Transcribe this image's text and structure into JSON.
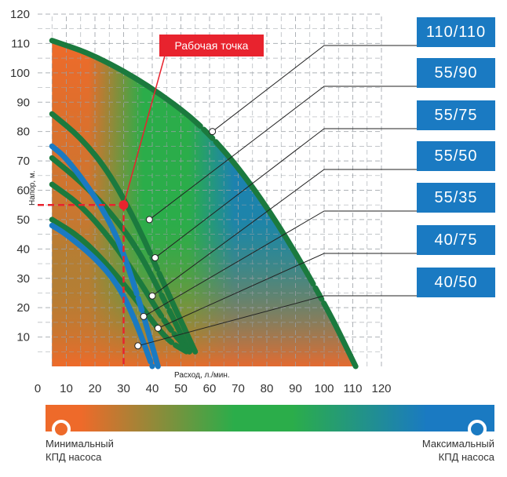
{
  "chart_data": {
    "type": "line",
    "x_ticks": [
      "0",
      "10",
      "20",
      "30",
      "40",
      "50",
      "60",
      "70",
      "80",
      "90",
      "100",
      "110",
      "120"
    ],
    "y_ticks": [
      "10",
      "20",
      "30",
      "40",
      "50",
      "60",
      "70",
      "80",
      "90",
      "100",
      "110",
      "120"
    ],
    "xlabel": "Расход, л./мин.",
    "ylabel": "Напор, м.",
    "xlim": [
      0,
      120
    ],
    "ylim": [
      0,
      120
    ],
    "grid": true,
    "series": [
      {
        "name": "110/110",
        "color": "#1b7a3e",
        "x": [
          5,
          20,
          40,
          60,
          80,
          100,
          111
        ],
        "y": [
          111,
          106,
          95,
          80,
          55,
          22,
          0
        ],
        "label_point": [
          61,
          80
        ]
      },
      {
        "name": "55/90",
        "color": "#1b7a3e",
        "x": [
          5,
          15,
          25,
          35,
          45,
          55
        ],
        "y": [
          86,
          78,
          66,
          48,
          26,
          5
        ],
        "label_point": [
          39,
          50
        ]
      },
      {
        "name": "55/75",
        "color": "#1b7a3e",
        "x": [
          5,
          15,
          25,
          35,
          45,
          53
        ],
        "y": [
          71,
          63,
          53,
          40,
          21,
          5
        ],
        "label_point": [
          41,
          37
        ]
      },
      {
        "name": "55/50",
        "color": "#1b7a3e",
        "x": [
          5,
          15,
          25,
          35,
          45,
          53
        ],
        "y": [
          62,
          55,
          44,
          30,
          14,
          5
        ],
        "label_point": [
          40,
          24
        ]
      },
      {
        "name": "55/35",
        "color": "#1b7a3e",
        "x": [
          5,
          15,
          25,
          35,
          45,
          52
        ],
        "y": [
          50,
          44,
          34,
          22,
          9,
          5
        ],
        "label_point": [
          37,
          17
        ]
      },
      {
        "name": "40/75",
        "color": "#1a7ac2",
        "x": [
          5,
          10,
          20,
          28,
          35,
          42
        ],
        "y": [
          75,
          71,
          58,
          44,
          24,
          0
        ],
        "label_point": [
          42,
          13
        ]
      },
      {
        "name": "40/50",
        "color": "#1a7ac2",
        "x": [
          5,
          10,
          20,
          28,
          34,
          40
        ],
        "y": [
          48,
          45,
          37,
          28,
          16,
          0
        ],
        "label_point": [
          35,
          7
        ]
      }
    ],
    "annotations": [
      {
        "text": "Рабочая точка",
        "x": 30,
        "y": 55
      }
    ],
    "operating_point": {
      "x": 30,
      "y": 55
    },
    "colors": {
      "min_efficiency": "#ee6a2a",
      "mid_efficiency": "#2bad4a",
      "max_efficiency": "#1a7ac2",
      "callout": "#e8232e"
    }
  },
  "models": [
    "110/110",
    "55/90",
    "55/75",
    "55/50",
    "55/35",
    "40/75",
    "40/50"
  ],
  "callout": {
    "label": "Рабочая точка"
  },
  "legend": {
    "min_label": "Минимальный\nКПД насоса",
    "max_label": "Максимальный\nКПД насоса"
  }
}
